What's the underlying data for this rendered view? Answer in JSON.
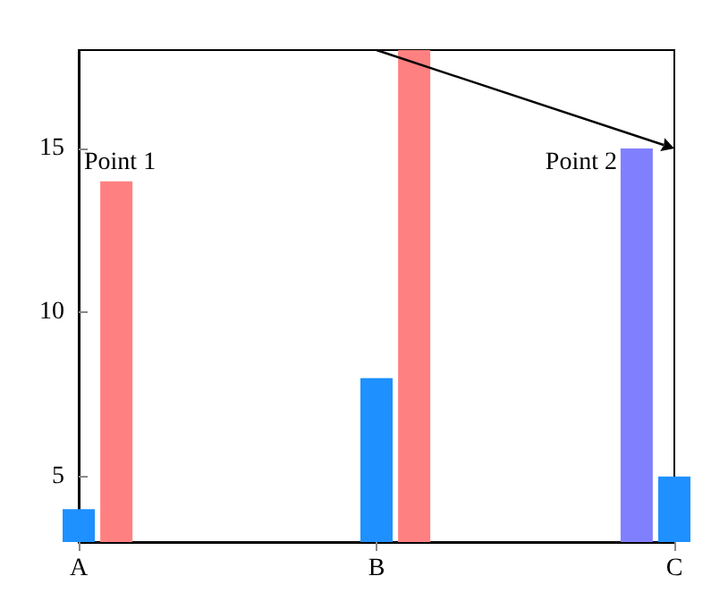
{
  "chart_data": {
    "type": "bar",
    "categories": [
      "A",
      "B",
      "C"
    ],
    "series": [
      {
        "color": "#8080ff",
        "values": [
          null,
          3,
          15
        ]
      },
      {
        "color": "#1e90ff",
        "values": [
          4,
          8,
          5
        ]
      },
      {
        "color": "#ff8080",
        "values": [
          14,
          18,
          null
        ]
      }
    ],
    "ylim": [
      3,
      18
    ],
    "yticks": [
      5,
      10,
      15
    ],
    "grid": false,
    "annotations": [
      "Point 1",
      "Point 2"
    ]
  }
}
